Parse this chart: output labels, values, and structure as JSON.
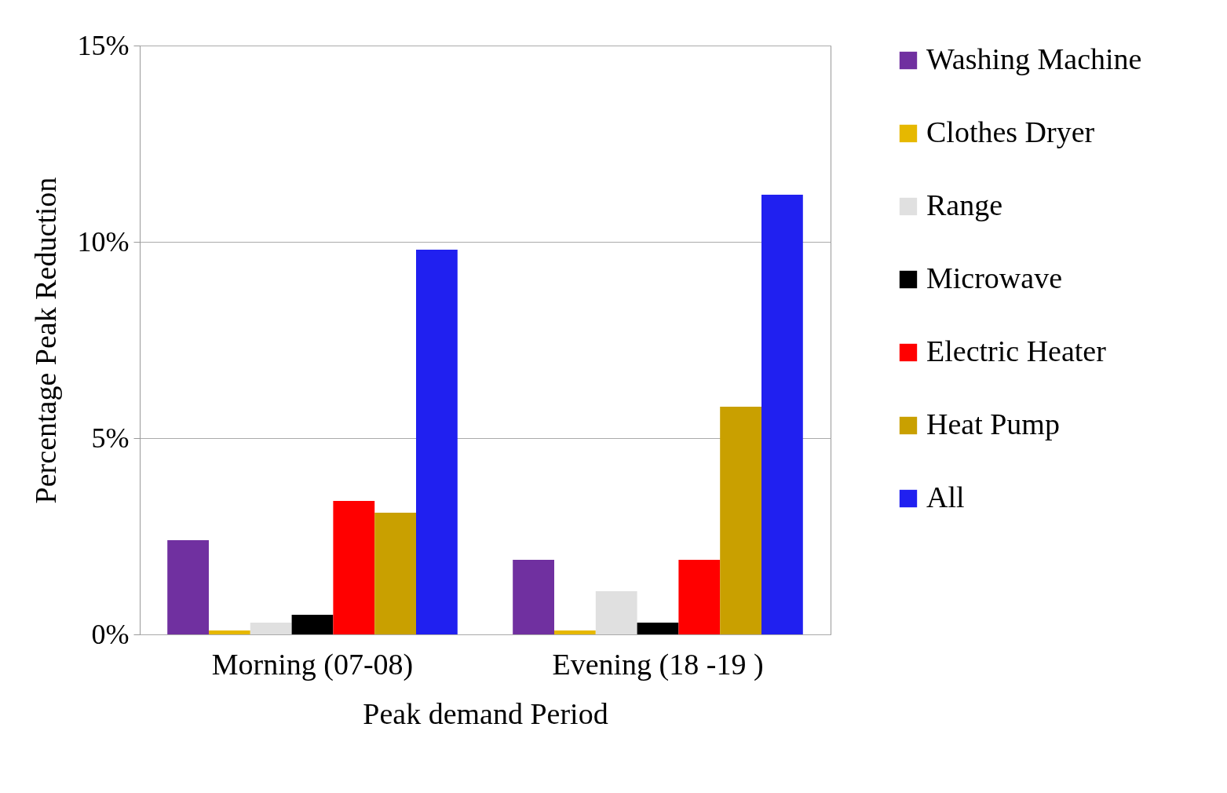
{
  "chart_data": {
    "type": "bar",
    "xlabel": "Peak demand Period",
    "ylabel": "Percentage  Peak Reduction",
    "categories": [
      "Morning (07-08)",
      "Evening (18 -19 )"
    ],
    "series": [
      {
        "name": "Washing Machine",
        "color": "#7030a0",
        "values": [
          2.4,
          1.9
        ]
      },
      {
        "name": "Clothes Dryer",
        "color": "#e6b800",
        "values": [
          0.1,
          0.1
        ]
      },
      {
        "name": "Range",
        "color": "#e0e0e0",
        "values": [
          0.3,
          1.1
        ]
      },
      {
        "name": "Microwave",
        "color": "#000000",
        "values": [
          0.5,
          0.3
        ]
      },
      {
        "name": "Electric Heater",
        "color": "#ff0000",
        "values": [
          3.4,
          1.9
        ]
      },
      {
        "name": "Heat Pump",
        "color": "#c9a000",
        "values": [
          3.1,
          5.8
        ]
      },
      {
        "name": "All",
        "color": "#2020f0",
        "values": [
          9.8,
          11.2
        ]
      }
    ],
    "ylim": [
      0,
      15
    ],
    "yticks": [
      {
        "value": 0,
        "label": "0%"
      },
      {
        "value": 5,
        "label": "5%"
      },
      {
        "value": 10,
        "label": "10%"
      },
      {
        "value": 15,
        "label": "15%"
      }
    ],
    "grid": "y",
    "legend": "right"
  }
}
